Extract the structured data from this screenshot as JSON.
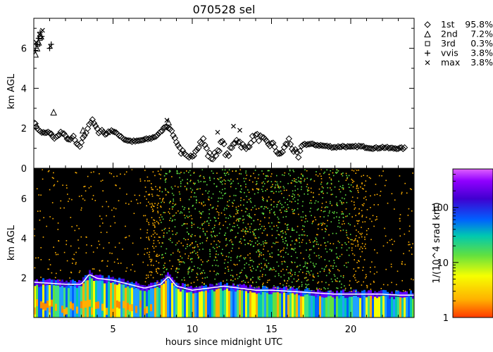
{
  "chart_data": [
    {
      "type": "scatter",
      "title": "070528 sel",
      "ylabel": "km AGL",
      "xlim": [
        0,
        24
      ],
      "ylim": [
        0,
        7.5
      ],
      "yticks": [
        "0",
        "2",
        "4",
        "6"
      ],
      "legend_position": "right",
      "series": [
        {
          "name": "1st",
          "marker": "diamond",
          "percent": "95.8%",
          "x": [
            0.05,
            0.15,
            0.3,
            0.5,
            0.7,
            0.9,
            1.1,
            1.3,
            1.5,
            1.7,
            1.9,
            2.1,
            2.3,
            2.5,
            2.7,
            2.9,
            3.1,
            3.3,
            3.5,
            3.7,
            3.9,
            4.1,
            4.3,
            4.5,
            4.7,
            4.9,
            5.1,
            5.3,
            5.5,
            5.7,
            5.9,
            6.2,
            6.5,
            6.8,
            7.1,
            7.4,
            7.7,
            8.0,
            8.3,
            8.6,
            8.9,
            9.2,
            9.5,
            9.8,
            10.1,
            10.4,
            10.7,
            11.0,
            11.3,
            11.6,
            11.9,
            12.2,
            12.5,
            12.8,
            13.1,
            13.4,
            13.7,
            14.0,
            14.3,
            14.6,
            14.9,
            15.2,
            15.5,
            15.8,
            16.1,
            16.4,
            16.7,
            17.0,
            17.5,
            18.0,
            18.5,
            19.0,
            19.5,
            20.0,
            20.5,
            21.0,
            21.5,
            22.0,
            22.5,
            23.0,
            23.5
          ],
          "y": [
            2.3,
            2.1,
            1.9,
            1.8,
            1.75,
            1.8,
            1.7,
            1.5,
            1.6,
            1.8,
            1.7,
            1.5,
            1.4,
            1.6,
            1.2,
            1.1,
            1.5,
            1.8,
            2.2,
            2.4,
            2.1,
            1.8,
            1.9,
            1.7,
            1.8,
            1.9,
            1.8,
            1.7,
            1.6,
            1.45,
            1.4,
            1.35,
            1.35,
            1.4,
            1.45,
            1.5,
            1.6,
            1.8,
            2.1,
            2.0,
            1.5,
            1.0,
            0.6,
            0.4,
            0.8,
            1.2,
            1.4,
            0.7,
            0.5,
            0.9,
            1.3,
            0.6,
            1.0,
            1.5,
            1.2,
            0.9,
            1.4,
            1.6,
            1.5,
            1.3,
            1.2,
            1.1,
            0.6,
            1.0,
            1.4,
            0.9,
            0.5,
            1.2,
            1.2,
            1.15,
            1.1,
            1.05,
            1.1,
            1.05,
            1.1,
            1.05,
            1.0,
            1.05,
            1.0,
            1.0,
            1.0
          ]
        },
        {
          "name": "2nd",
          "marker": "triangle",
          "percent": "7.2%",
          "x": [
            0.1,
            0.2,
            0.3,
            0.45,
            1.25,
            3.1,
            8.5
          ],
          "y": [
            5.7,
            6.0,
            6.3,
            6.6,
            2.8,
            1.9,
            2.3
          ]
        },
        {
          "name": "3rd",
          "marker": "square",
          "percent": "0.3%",
          "x": [
            0.25,
            0.4
          ],
          "y": [
            6.2,
            6.5
          ]
        },
        {
          "name": "vvis",
          "marker": "plus",
          "percent": "3.8%",
          "x": [
            0.1,
            0.2,
            0.3,
            0.4,
            0.5,
            1.0,
            1.1
          ],
          "y": [
            5.9,
            6.2,
            6.5,
            6.8,
            6.6,
            6.0,
            6.2
          ]
        },
        {
          "name": "max",
          "marker": "x",
          "percent": "3.8%",
          "x": [
            0.15,
            0.35,
            0.55,
            1.05,
            8.4,
            11.6,
            12.6,
            13.0
          ],
          "y": [
            6.3,
            6.7,
            6.9,
            6.1,
            2.4,
            1.8,
            2.1,
            1.9
          ]
        }
      ]
    },
    {
      "type": "heatmap",
      "xlabel": "hours since midnight UTC",
      "ylabel": "km AGL",
      "xlim": [
        0,
        24
      ],
      "ylim": [
        0,
        7.5
      ],
      "xticks": [
        "5",
        "10",
        "15",
        "20"
      ],
      "yticks": [
        "2",
        "4",
        "6"
      ],
      "colorbar": {
        "label": "1/(10^4 srad km)",
        "scale": "log",
        "range": [
          1,
          500
        ],
        "ticks": [
          "1",
          "10",
          "100"
        ]
      },
      "cloud_base_km": {
        "x": [
          0,
          1,
          2,
          3,
          3.5,
          4,
          5,
          6,
          7,
          8,
          8.5,
          9,
          10,
          11,
          12,
          13,
          14,
          15,
          16,
          17,
          18,
          19,
          20,
          21,
          22,
          23,
          24
        ],
        "y": [
          1.7,
          1.65,
          1.6,
          1.6,
          2.1,
          1.9,
          1.8,
          1.6,
          1.4,
          1.6,
          2.0,
          1.5,
          1.3,
          1.4,
          1.5,
          1.4,
          1.3,
          1.3,
          1.25,
          1.2,
          1.15,
          1.1,
          1.1,
          1.1,
          1.1,
          1.05,
          1.05
        ]
      }
    }
  ]
}
